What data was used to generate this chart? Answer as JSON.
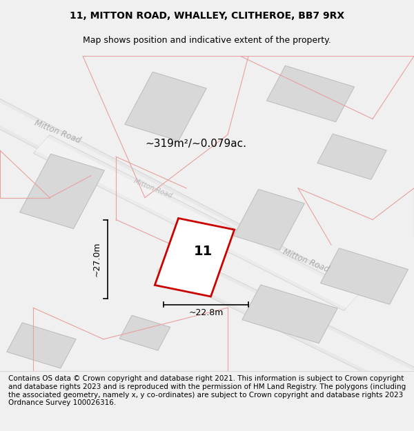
{
  "title": "11, MITTON ROAD, WHALLEY, CLITHEROE, BB7 9RX",
  "subtitle": "Map shows position and indicative extent of the property.",
  "footer": "Contains OS data © Crown copyright and database right 2021. This information is subject to Crown copyright and database rights 2023 and is reproduced with the permission of HM Land Registry. The polygons (including the associated geometry, namely x, y co-ordinates) are subject to Crown copyright and database rights 2023 Ordnance Survey 100026316.",
  "area_label": "~319m²/~0.079ac.",
  "property_number": "11",
  "width_label": "~22.8m",
  "height_label": "~27.0m",
  "bg_color": "#f5f5f5",
  "map_bg": "#ffffff",
  "road_fill": "#e8e8e8",
  "road_stroke": "#cccccc",
  "pink_line": "#e8a0a0",
  "red_outline": "#cc0000",
  "building_fill": "#d8d8d8",
  "building_stroke": "#bbbbbb",
  "road_label_color": "#aaaaaa",
  "title_fontsize": 10,
  "subtitle_fontsize": 9,
  "footer_fontsize": 7.5
}
